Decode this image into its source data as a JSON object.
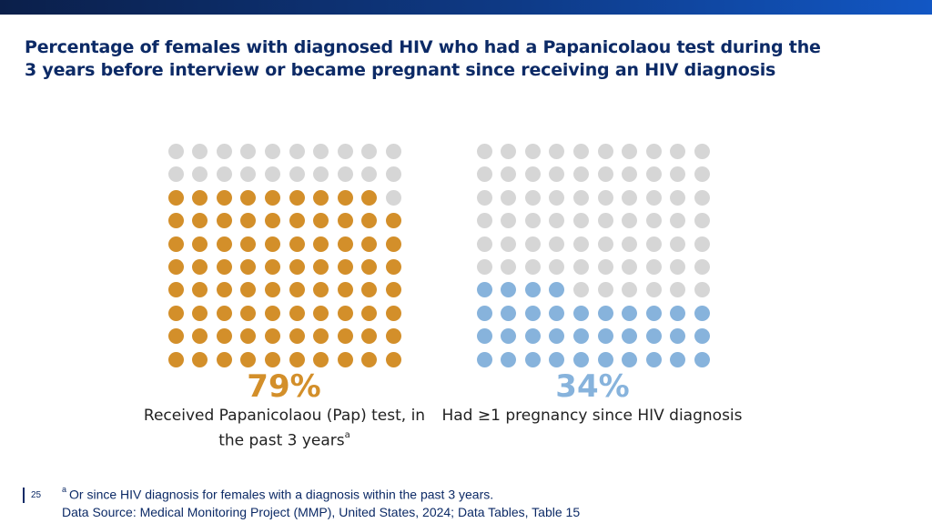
{
  "header": {
    "title_line1": "Percentage of females with diagnosed HIV who had a Papanicolaou test during the",
    "title_line2": "3 years before interview or became pregnant since receiving an HIV diagnosis"
  },
  "chart_data": [
    {
      "type": "waffle",
      "grid": {
        "rows": 10,
        "cols": 10
      },
      "value": 79,
      "value_label": "79%",
      "label": "Received Papanicolaou (Pap) test, in the past 3 years",
      "label_line1": "Received Papanicolaou (Pap) test, in",
      "label_line2": "the past 3 years",
      "label_superscript": "a",
      "fill_color": "#d38f2a",
      "empty_color": "#d6d6d6"
    },
    {
      "type": "waffle",
      "grid": {
        "rows": 10,
        "cols": 10
      },
      "value": 34,
      "value_label": "34%",
      "label": "Had ≥1 pregnancy since HIV diagnosis",
      "fill_color": "#87b3dc",
      "empty_color": "#d6d6d6"
    }
  ],
  "footer": {
    "page_number": "25",
    "footnote_marker": "a",
    "footnote_text": "Or since HIV diagnosis for females with a diagnosis within the past 3 years.",
    "source": "Data Source: Medical Monitoring Project (MMP), United States, 2024; Data Tables, Table 15"
  },
  "colors": {
    "header_bar": "#0e3a86",
    "title": "#0c2a66"
  }
}
